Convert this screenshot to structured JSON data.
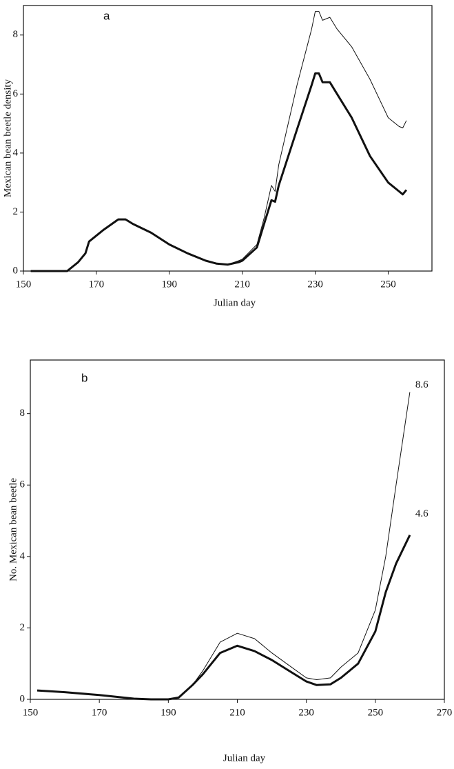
{
  "chart_data": [
    {
      "type": "line",
      "panel_label": "a",
      "x_label": "Julian day",
      "y_label": "Mexican bean beetle density",
      "x": [
        152,
        162,
        165,
        167,
        168,
        172,
        176,
        178,
        180,
        185,
        190,
        195,
        200,
        203,
        206,
        209,
        210,
        214,
        216,
        218,
        219,
        220,
        225,
        229,
        230,
        231,
        232,
        234,
        236,
        240,
        245,
        250,
        253,
        254,
        255
      ],
      "series": [
        {
          "color": "#111111",
          "width": 1,
          "values": [
            0,
            0,
            0.3,
            0.6,
            1.0,
            1.4,
            1.75,
            1.75,
            1.6,
            1.3,
            0.9,
            0.6,
            0.35,
            0.25,
            0.22,
            0.35,
            0.4,
            0.9,
            1.8,
            2.9,
            2.7,
            3.6,
            6.3,
            8.2,
            8.8,
            8.8,
            8.5,
            8.6,
            8.2,
            7.6,
            6.5,
            5.2,
            4.9,
            4.85,
            5.1
          ]
        },
        {
          "color": "#111111",
          "width": 3,
          "values": [
            0,
            0,
            0.3,
            0.6,
            1.0,
            1.4,
            1.75,
            1.75,
            1.6,
            1.3,
            0.9,
            0.6,
            0.35,
            0.25,
            0.22,
            0.3,
            0.35,
            0.8,
            1.6,
            2.4,
            2.35,
            2.9,
            4.8,
            6.3,
            6.7,
            6.7,
            6.4,
            6.4,
            6.0,
            5.2,
            3.9,
            3.0,
            2.7,
            2.6,
            2.75
          ]
        }
      ],
      "xlim": [
        150,
        262
      ],
      "xticks": [
        150,
        170,
        190,
        210,
        230,
        250
      ],
      "ylim": [
        0,
        9
      ],
      "yticks": [
        0,
        2,
        4,
        6,
        8
      ]
    },
    {
      "type": "line",
      "panel_label": "b",
      "x_label": "Julian day",
      "y_label": "No. Mexican bean beetle",
      "x": [
        152,
        160,
        170,
        180,
        185,
        190,
        193,
        197,
        200,
        205,
        210,
        215,
        220,
        225,
        230,
        233,
        237,
        240,
        245,
        250,
        253,
        256,
        260
      ],
      "series": [
        {
          "color": "#111111",
          "width": 1,
          "values": [
            0.25,
            0.2,
            0.12,
            0.02,
            0,
            0,
            0.05,
            0.4,
            0.8,
            1.6,
            1.85,
            1.7,
            1.3,
            0.95,
            0.6,
            0.55,
            0.6,
            0.9,
            1.3,
            2.5,
            4.0,
            6.0,
            8.6
          ]
        },
        {
          "color": "#111111",
          "width": 3,
          "values": [
            0.25,
            0.2,
            0.12,
            0.02,
            0,
            0,
            0.05,
            0.4,
            0.7,
            1.3,
            1.5,
            1.35,
            1.1,
            0.8,
            0.5,
            0.4,
            0.42,
            0.6,
            1.0,
            1.9,
            3.0,
            3.8,
            4.6
          ]
        }
      ],
      "annotations": [
        "8.6",
        "4.6"
      ],
      "xlim": [
        150,
        270
      ],
      "xticks": [
        150,
        170,
        190,
        210,
        230,
        250,
        270
      ],
      "ylim": [
        0,
        9.5
      ],
      "yticks": [
        0,
        2,
        4,
        6,
        8
      ]
    }
  ]
}
